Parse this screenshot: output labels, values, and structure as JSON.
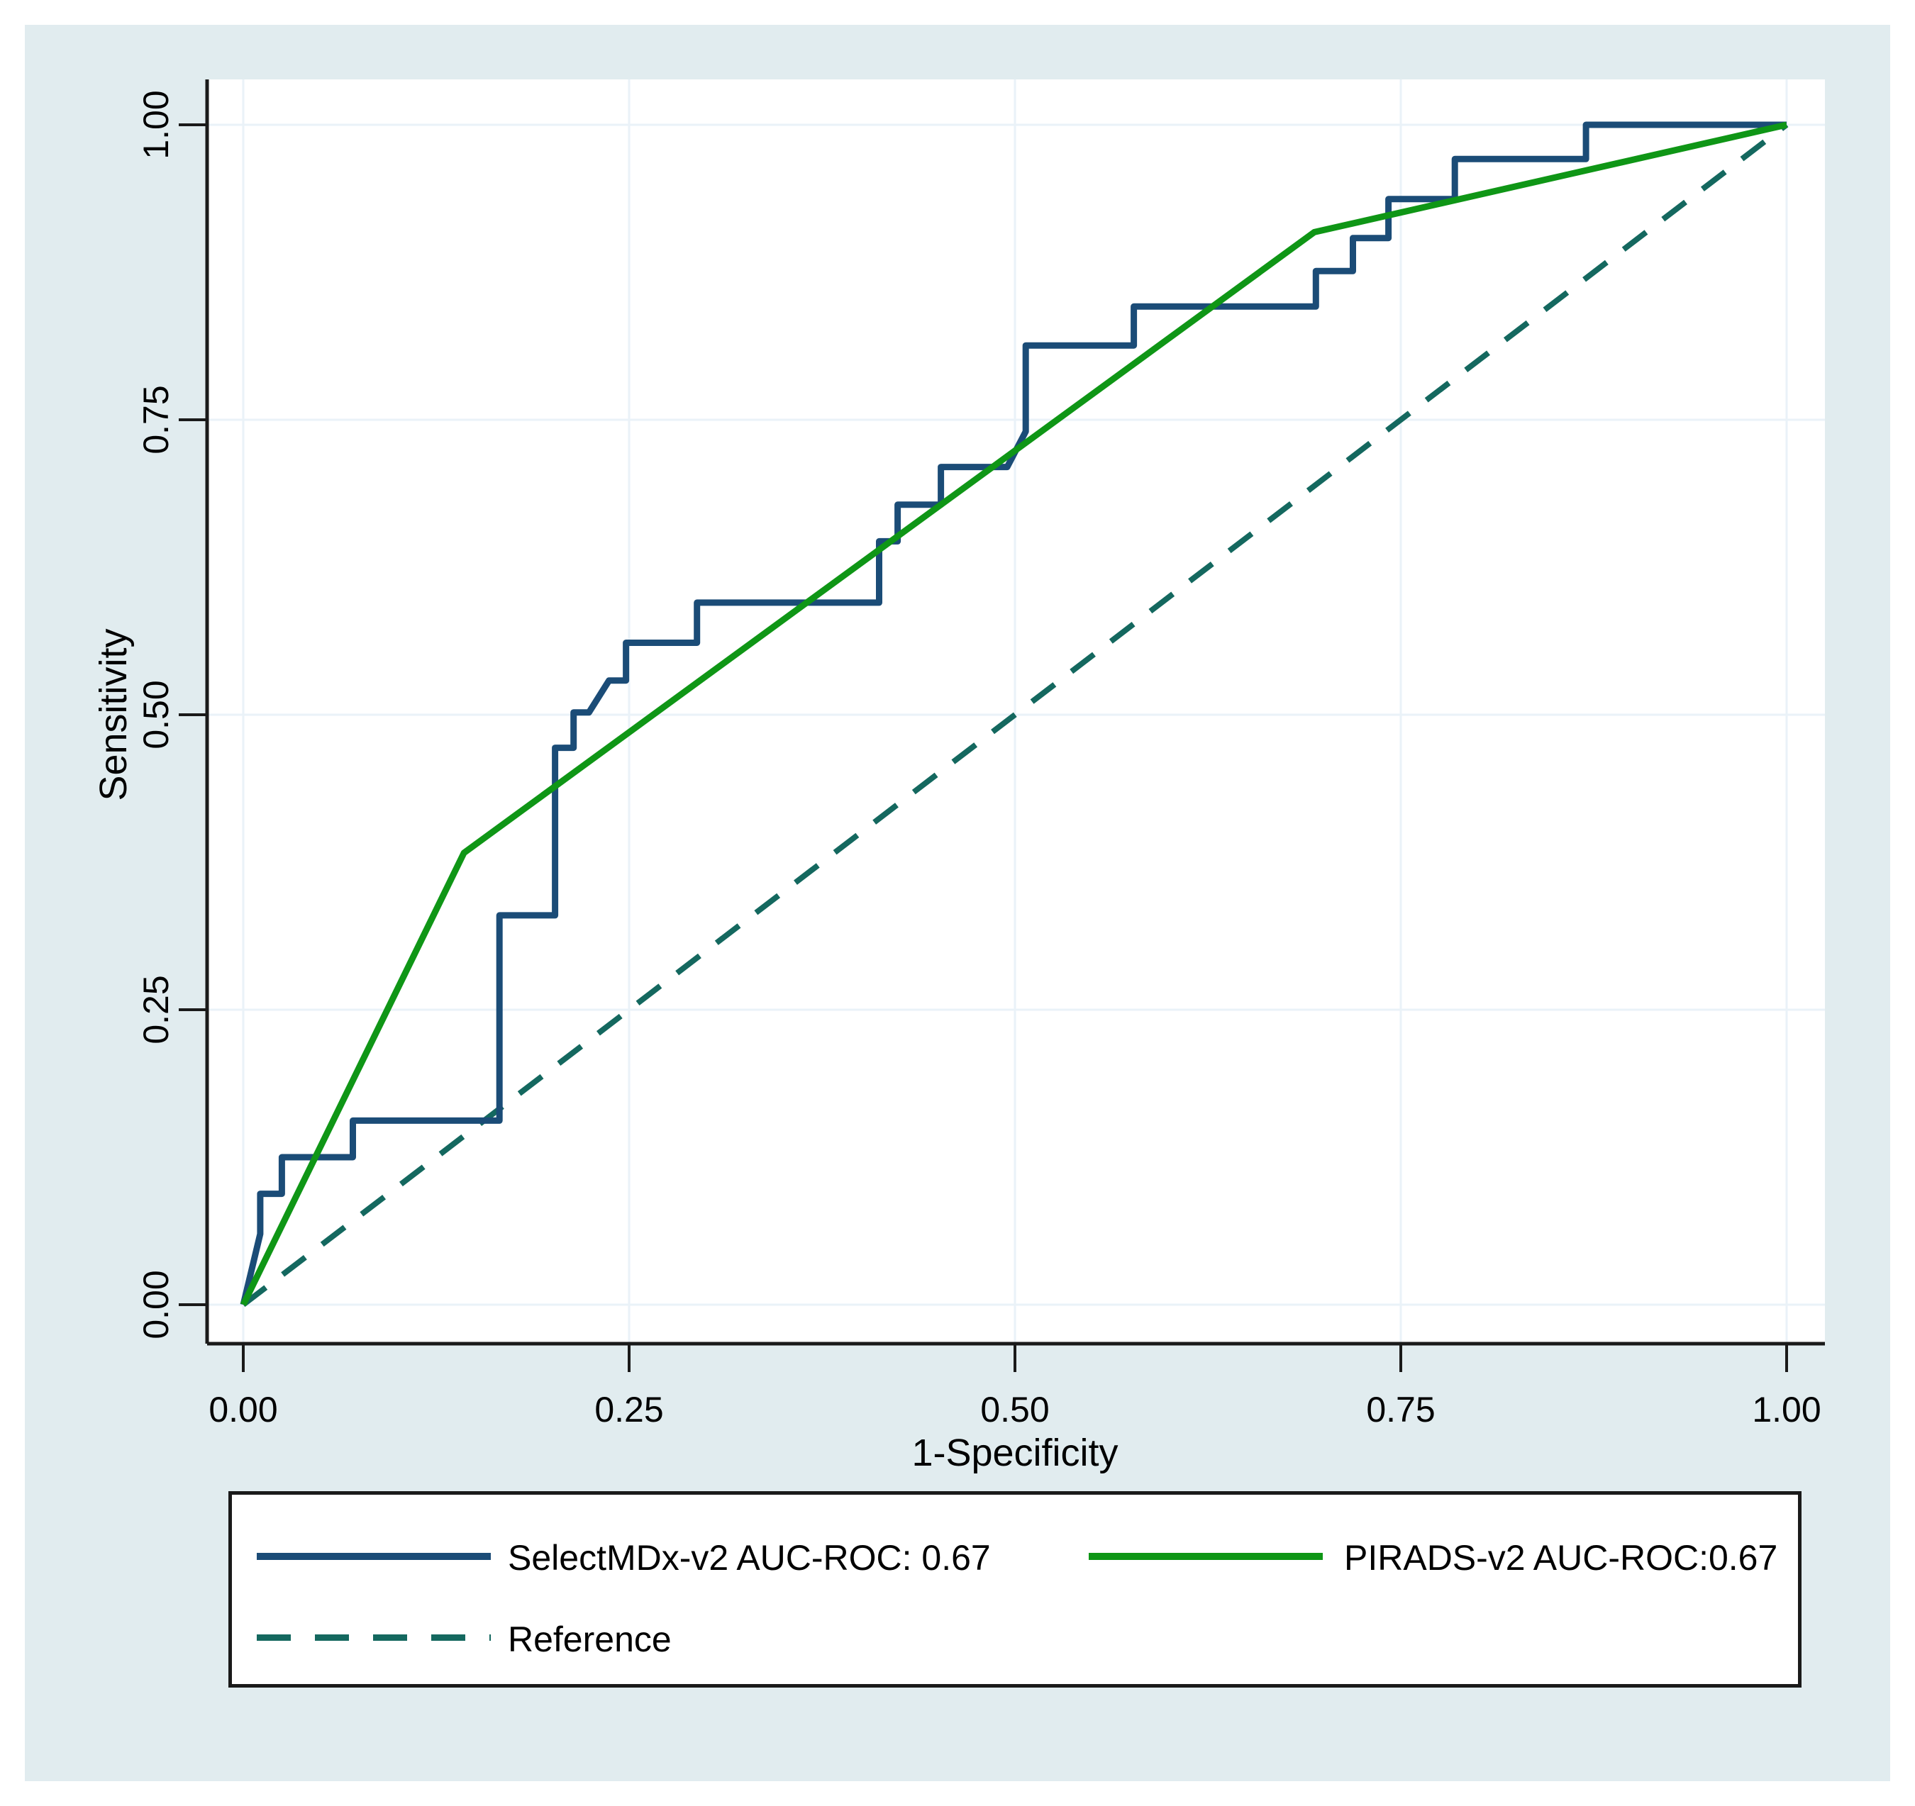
{
  "figure": {
    "background": "#e1ecef",
    "plot_background": "#ffffff",
    "gridline_color": "#eaf2f8",
    "axis_color": "#1a1a1a",
    "text_color": "#000000"
  },
  "chart_data": {
    "type": "line",
    "title": "",
    "xlabel": "1-Specificity",
    "ylabel": "Sensitivity",
    "xlim": [
      0,
      1
    ],
    "ylim": [
      0,
      1
    ],
    "grid": true,
    "legend_position": "bottom",
    "x_ticks": [
      "0.00",
      "0.25",
      "0.50",
      "0.75",
      "1.00"
    ],
    "y_ticks": [
      "0.00",
      "0.25",
      "0.50",
      "0.75",
      "1.00"
    ],
    "series": [
      {
        "name": "SelectMDx-v2 AUC-ROC: 0.67",
        "color": "#1b4c77",
        "style": "solid",
        "points": [
          [
            0.0,
            0.0
          ],
          [
            0.011,
            0.06
          ],
          [
            0.011,
            0.094
          ],
          [
            0.025,
            0.094
          ],
          [
            0.025,
            0.125
          ],
          [
            0.071,
            0.125
          ],
          [
            0.071,
            0.156
          ],
          [
            0.166,
            0.156
          ],
          [
            0.166,
            0.33
          ],
          [
            0.202,
            0.33
          ],
          [
            0.202,
            0.472
          ],
          [
            0.214,
            0.472
          ],
          [
            0.214,
            0.502
          ],
          [
            0.224,
            0.502
          ],
          [
            0.237,
            0.529
          ],
          [
            0.248,
            0.529
          ],
          [
            0.248,
            0.561
          ],
          [
            0.294,
            0.561
          ],
          [
            0.294,
            0.595
          ],
          [
            0.412,
            0.595
          ],
          [
            0.412,
            0.647
          ],
          [
            0.424,
            0.647
          ],
          [
            0.424,
            0.678
          ],
          [
            0.452,
            0.678
          ],
          [
            0.452,
            0.71
          ],
          [
            0.495,
            0.71
          ],
          [
            0.507,
            0.74
          ],
          [
            0.507,
            0.813
          ],
          [
            0.577,
            0.813
          ],
          [
            0.577,
            0.846
          ],
          [
            0.695,
            0.846
          ],
          [
            0.695,
            0.876
          ],
          [
            0.719,
            0.876
          ],
          [
            0.719,
            0.904
          ],
          [
            0.742,
            0.904
          ],
          [
            0.742,
            0.937
          ],
          [
            0.785,
            0.937
          ],
          [
            0.785,
            0.971
          ],
          [
            0.87,
            0.971
          ],
          [
            0.87,
            1.0
          ],
          [
            1.0,
            1.0
          ]
        ]
      },
      {
        "name": "PIRADS-v2 AUC-ROC:0.67",
        "color": "#0f9616",
        "style": "solid",
        "points": [
          [
            0.0,
            0.0
          ],
          [
            0.143,
            0.383
          ],
          [
            0.694,
            0.909
          ],
          [
            1.0,
            1.0
          ]
        ]
      },
      {
        "name": "Reference",
        "color": "#14685f",
        "style": "dashed",
        "points": [
          [
            0.0,
            0.0
          ],
          [
            1.0,
            1.0
          ]
        ]
      }
    ]
  }
}
